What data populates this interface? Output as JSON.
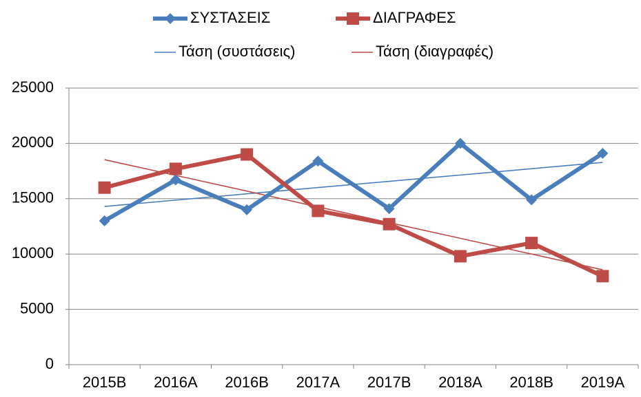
{
  "chart_data": {
    "type": "line",
    "categories": [
      "2015B",
      "2016A",
      "2016B",
      "2017A",
      "2017B",
      "2018A",
      "2018B",
      "2019A"
    ],
    "series": [
      {
        "name": "ΣΥΣΤΑΣΕΙΣ",
        "color": "#4a7ebb",
        "marker": "diamond",
        "values": [
          13000,
          16700,
          14000,
          18400,
          14100,
          20000,
          14900,
          19100
        ]
      },
      {
        "name": "ΔΙΑΓΡΑΦΕΣ",
        "color": "#be4b48",
        "marker": "square",
        "values": [
          16000,
          17700,
          19000,
          13900,
          12700,
          9800,
          11000,
          8000
        ]
      },
      {
        "name": "Τάση (συστάσεις)",
        "color": "#4a7ebb",
        "style": "trend",
        "values": [
          14300,
          14870,
          15440,
          16010,
          16570,
          17140,
          17710,
          18280
        ]
      },
      {
        "name": "Τάση (διαγραφές)",
        "color": "#be4b48",
        "style": "trend",
        "values": [
          18530,
          17110,
          15690,
          14260,
          12840,
          11420,
          10000,
          8580
        ]
      }
    ],
    "ylim": [
      0,
      25000
    ],
    "yticks": [
      0,
      5000,
      10000,
      15000,
      20000,
      25000
    ],
    "grid": true,
    "legend": "top"
  }
}
